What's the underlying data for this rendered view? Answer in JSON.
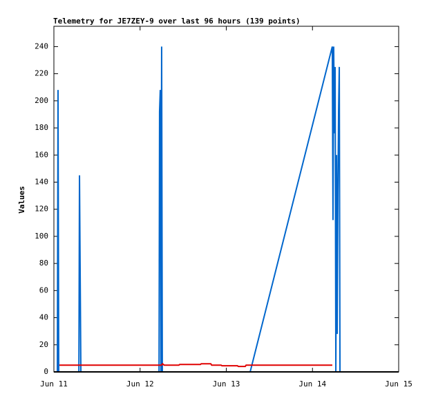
{
  "chart_data": {
    "type": "line",
    "title": "Telemetry for JE7ZEY-9 over last 96 hours (139 points)",
    "y_label": "Values",
    "xlim": [
      11,
      15
    ],
    "xticks": [
      {
        "value": 11,
        "label": "Jun 11"
      },
      {
        "value": 12,
        "label": "Jun 12"
      },
      {
        "value": 13,
        "label": "Jun 13"
      },
      {
        "value": 14,
        "label": "Jun 14"
      },
      {
        "value": 15,
        "label": "Jun 15"
      }
    ],
    "ylim": [
      0,
      255
    ],
    "yticks": [
      0,
      20,
      40,
      60,
      80,
      100,
      120,
      140,
      160,
      180,
      200,
      220,
      240
    ],
    "grid": false,
    "series": [
      {
        "color": "#0066cc",
        "x": [
          11.04,
          11.048,
          11.056,
          11.29,
          11.297,
          11.305,
          11.313,
          12.22,
          12.226,
          12.234,
          12.242,
          12.25,
          12.258,
          13.277,
          14.23,
          14.238,
          14.246,
          14.255,
          14.263,
          14.271,
          14.279,
          14.287,
          14.295,
          14.303,
          14.311,
          14.319
        ],
        "values": [
          0,
          208,
          0,
          0,
          145,
          72,
          0,
          0,
          192,
          208,
          0,
          240,
          0,
          0,
          240,
          112,
          240,
          176,
          225,
          0,
          160,
          28,
          133,
          192,
          225,
          0
        ]
      },
      {
        "color": "#e00000",
        "x": [
          11.064,
          12.25,
          12.26,
          12.28,
          12.45,
          12.46,
          12.7,
          12.71,
          12.82,
          12.83,
          12.94,
          12.95,
          13.13,
          13.14,
          13.22,
          13.23,
          14.23
        ],
        "values": [
          5,
          5,
          6,
          5,
          5,
          5.5,
          5.5,
          6,
          6,
          5,
          5,
          4.5,
          4.5,
          4,
          4,
          5,
          5
        ]
      }
    ]
  }
}
